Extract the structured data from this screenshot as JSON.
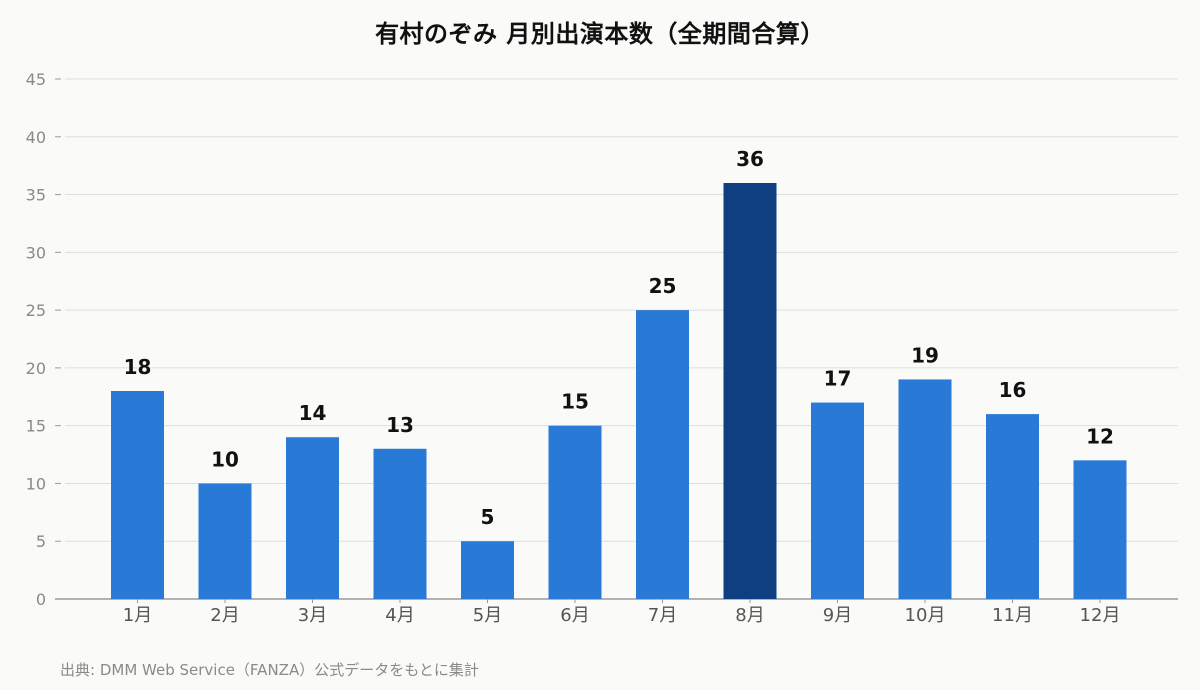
{
  "chart_data": {
    "type": "bar",
    "title": "有村のぞみ 月別出演本数（全期間合算）",
    "categories": [
      "1月",
      "2月",
      "3月",
      "4月",
      "5月",
      "6月",
      "7月",
      "8月",
      "9月",
      "10月",
      "11月",
      "12月"
    ],
    "values": [
      18,
      10,
      14,
      13,
      5,
      15,
      25,
      36,
      17,
      19,
      16,
      12
    ],
    "highlight_index": 7,
    "ylim": [
      0,
      45
    ],
    "yticks": [
      0,
      5,
      10,
      15,
      20,
      25,
      30,
      35,
      40,
      45
    ],
    "grid": true,
    "legend": "none",
    "data_labels": true,
    "colors": {
      "bar": "#2979d7",
      "highlight": "#0f3f80",
      "grid": "#dedede",
      "axis": "#9a9a9a"
    },
    "source": "出典: DMM Web Service（FANZA）公式データをもとに集計"
  }
}
